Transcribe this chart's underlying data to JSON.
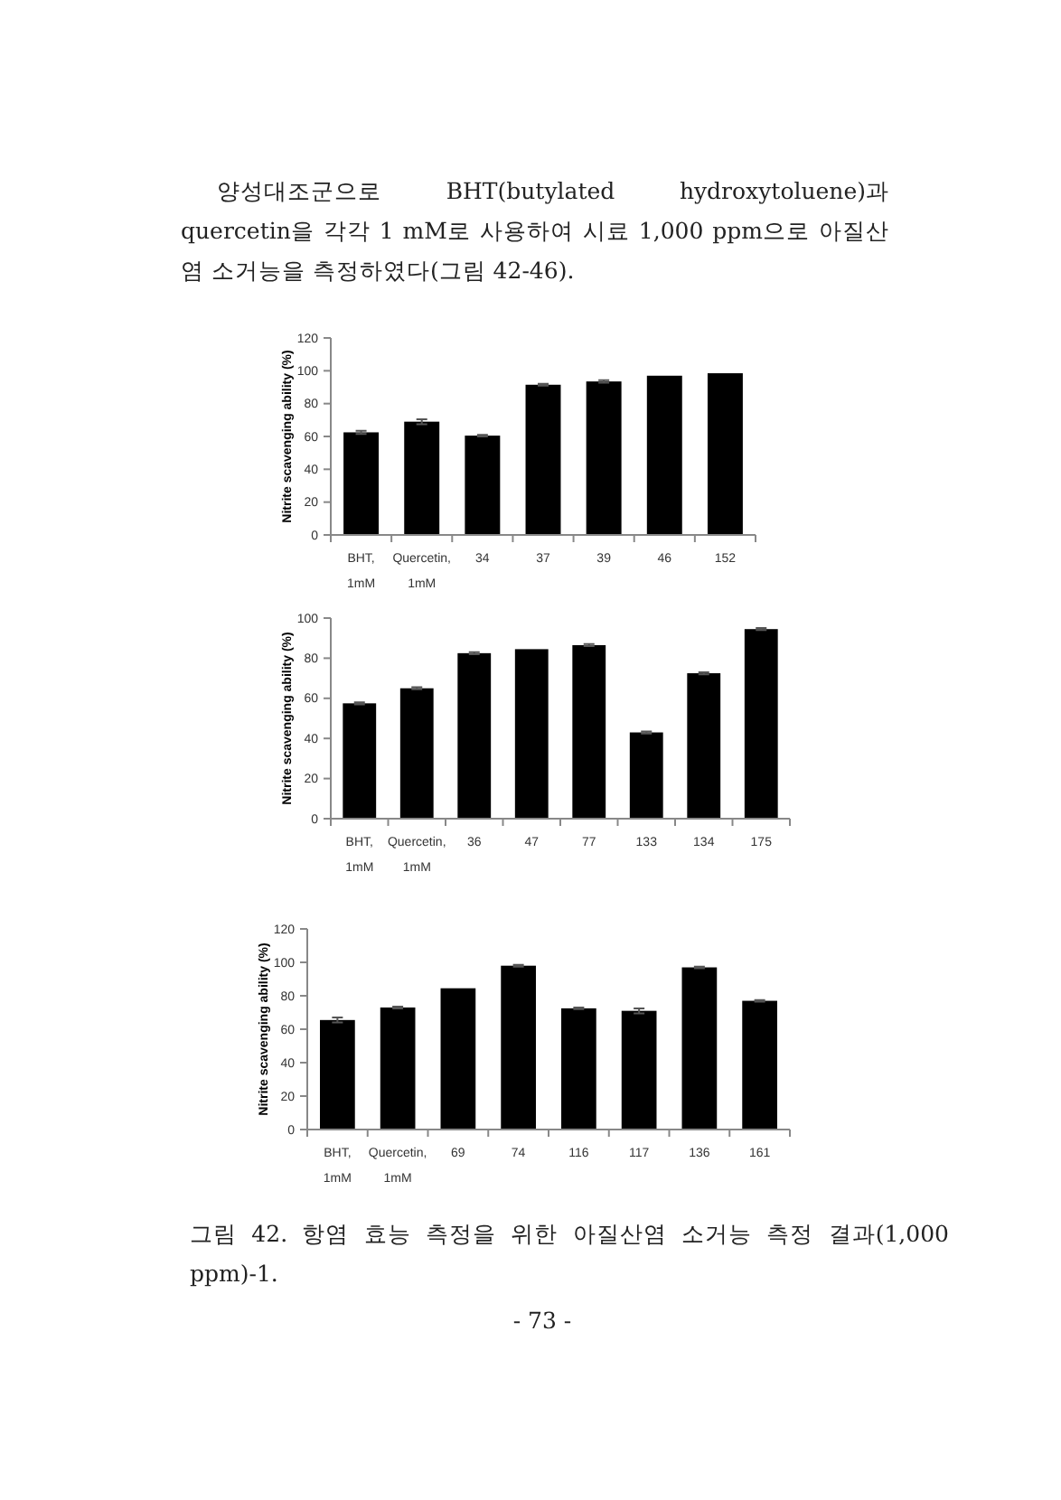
{
  "chart_data": [
    {
      "type": "bar",
      "ylabel": "Nitrite scavenging ability (%)",
      "annotations": [
        "양성대조군으로 BHT(butylated hydroxytoluene)과 quercetin을 각각 1 mM로 사용하여 시료 1,000 ppm으로 아질산염 소거능을 측정하였다(그림 42-46)."
      ],
      "categories": [
        "BHT, 1mM",
        "Quercetin, 1mM",
        "34",
        "37",
        "39",
        "46",
        "152"
      ],
      "values": [
        62.5,
        69,
        60.5,
        91.5,
        93.5,
        97,
        98.5
      ],
      "errors": [
        1,
        1.5,
        0.5,
        0.5,
        0.8,
        null,
        null
      ],
      "color": "#000000",
      "ylim": [
        0,
        120
      ],
      "yticks": [
        0,
        20,
        40,
        60,
        80,
        100,
        120
      ],
      "grid": false
    },
    {
      "type": "bar",
      "ylabel": "Nitrite scavenging ability (%)",
      "categories": [
        "BHT, 1mM",
        "Quercetin, 1mM",
        "36",
        "47",
        "77",
        "133",
        "134",
        "175"
      ],
      "values": [
        57.5,
        65,
        82.5,
        84.5,
        86.5,
        43,
        72.5,
        94.5
      ],
      "errors": [
        0.5,
        0.5,
        0.5,
        null,
        0.5,
        0.5,
        0.5,
        0.5
      ],
      "color": "#000000",
      "ylim": [
        0,
        100
      ],
      "yticks": [
        0,
        20,
        40,
        60,
        80,
        100
      ],
      "grid": false
    },
    {
      "type": "bar",
      "ylabel": "Nitrite scavenging ability (%)",
      "annotations": [
        "그림 42. 항염 효능 측정을 위한 아질산염 소거능 측정 결과(1,000 ppm)-1.",
        "- 73 -"
      ],
      "categories": [
        "BHT, 1mM",
        "Quercetin, 1mM",
        "69",
        "74",
        "116",
        "117",
        "136",
        "161"
      ],
      "values": [
        65.5,
        73,
        84.5,
        98,
        72.5,
        71,
        97,
        77
      ],
      "errors": [
        1.5,
        0.5,
        null,
        0.5,
        0.5,
        1.5,
        0.5,
        0.5
      ],
      "color": "#000000",
      "ylim": [
        0,
        120
      ],
      "yticks": [
        0,
        20,
        40,
        60,
        80,
        100,
        120
      ],
      "grid": false
    }
  ]
}
